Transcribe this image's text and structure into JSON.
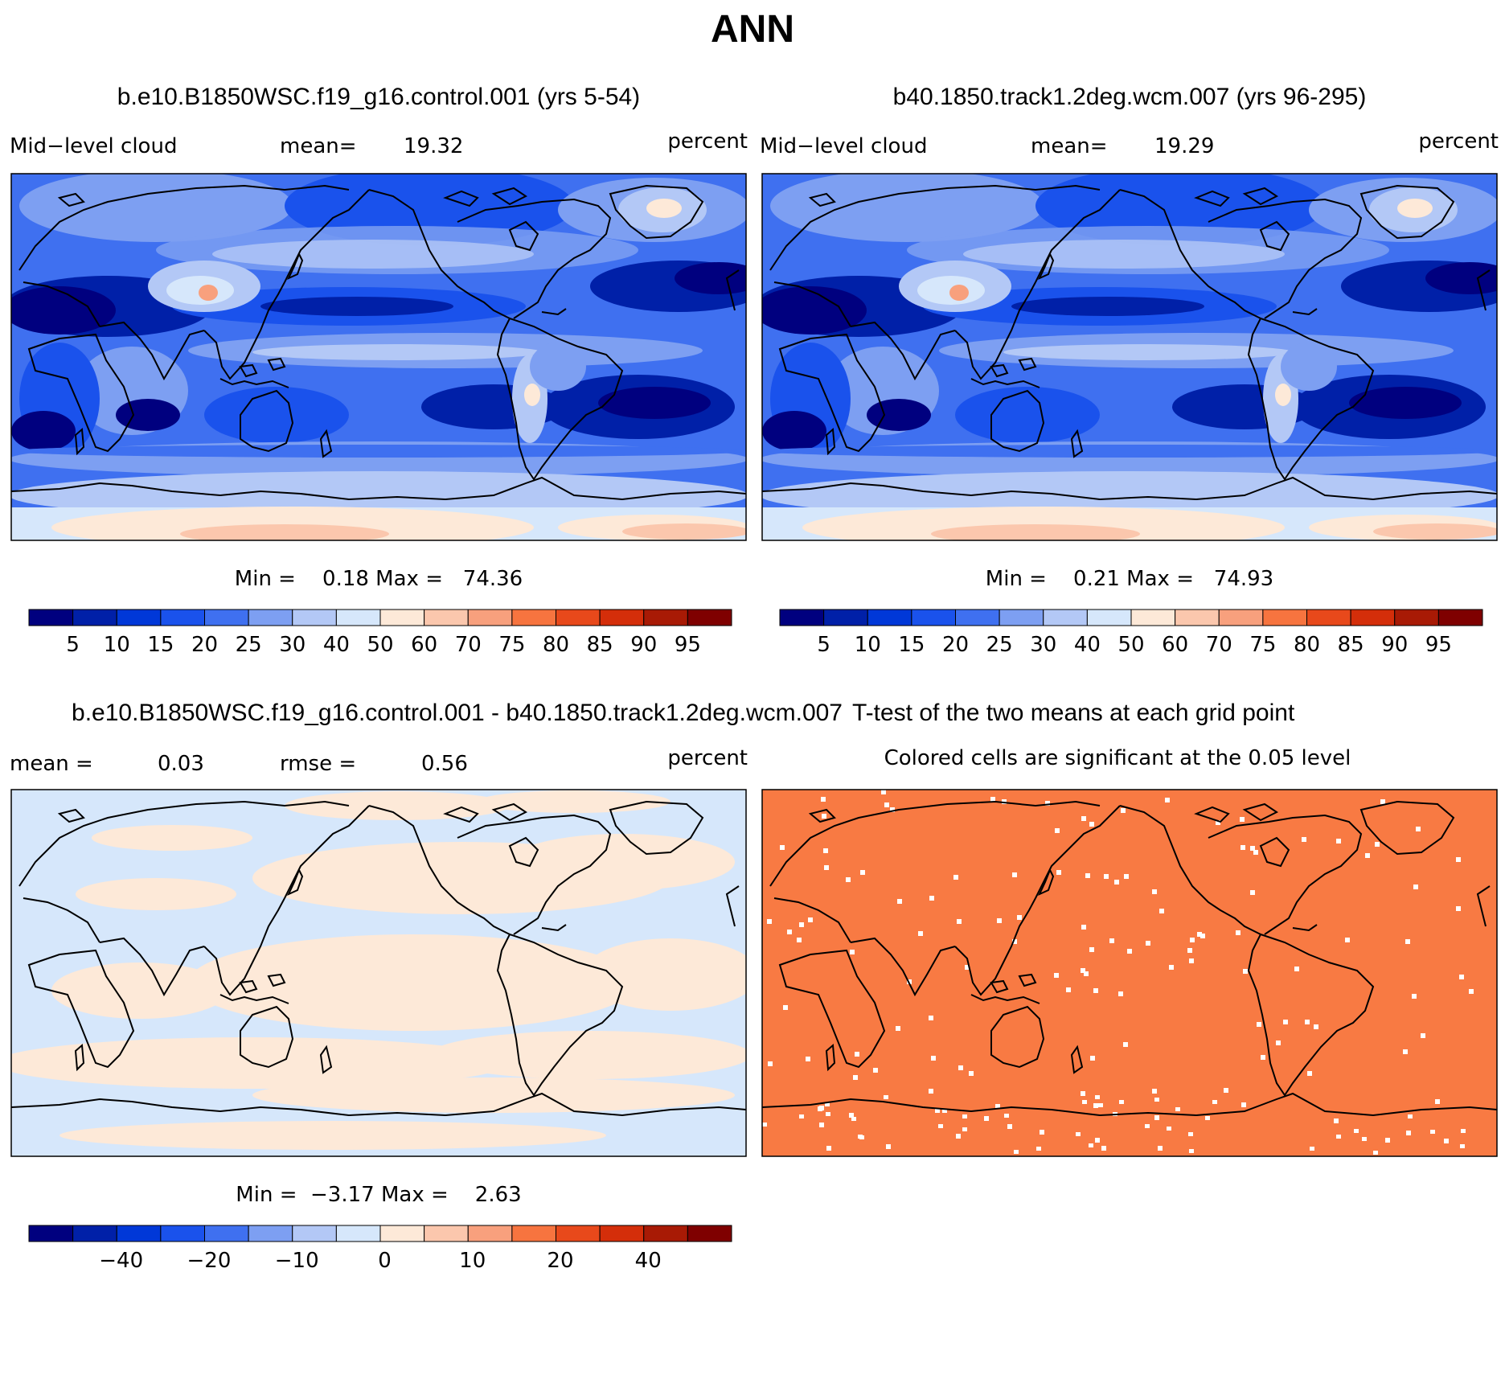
{
  "page_title": "ANN",
  "colors": {
    "scale": [
      "#00007f",
      "#0020a8",
      "#0038d8",
      "#1a52ec",
      "#3f70f0",
      "#7d9ff2",
      "#b3c8f6",
      "#d6e7fb",
      "#fde9d8",
      "#fbc7ad",
      "#f8a07d",
      "#f7743f",
      "#e8491b",
      "#d42e0a",
      "#a81a05",
      "#7f0000"
    ],
    "diff_neg": "#d6e7fb",
    "diff_pos": "#fde9d8",
    "significant": "#f87a43",
    "coast": "#000000"
  },
  "chart_data": [
    {
      "type": "heatmap",
      "id": "panel-control",
      "title": "b.e10.B1850WSC.f19_g16.control.001 (yrs 5-54)",
      "left_label": "Mid−level cloud",
      "stat_label": "mean=",
      "stat_value": "19.32",
      "units": "percent",
      "min_max_text": "Min =    0.18 Max =   74.36",
      "min": 0.18,
      "max": 74.36,
      "mean": 19.32,
      "colorbar_levels": [
        "5",
        "10",
        "15",
        "20",
        "25",
        "30",
        "40",
        "50",
        "60",
        "70",
        "75",
        "80",
        "85",
        "90",
        "95"
      ]
    },
    {
      "type": "heatmap",
      "id": "panel-track1",
      "title": "b40.1850.track1.2deg.wcm.007 (yrs 96-295)",
      "left_label": "Mid−level cloud",
      "stat_label": "mean=",
      "stat_value": "19.29",
      "units": "percent",
      "min_max_text": "Min =    0.21 Max =   74.93",
      "min": 0.21,
      "max": 74.93,
      "mean": 19.29,
      "colorbar_levels": [
        "5",
        "10",
        "15",
        "20",
        "25",
        "30",
        "40",
        "50",
        "60",
        "70",
        "75",
        "80",
        "85",
        "90",
        "95"
      ]
    },
    {
      "type": "heatmap",
      "id": "panel-diff",
      "title": "b.e10.B1850WSC.f19_g16.control.001 - b40.1850.track1.2deg.wcm.007",
      "left_label": "mean =",
      "stat_value": "0.03",
      "rmse_label": "rmse =",
      "rmse_value": "0.56",
      "units": "percent",
      "min_max_text": "Min =  −3.17 Max =    2.63",
      "min": -3.17,
      "max": 2.63,
      "mean": 0.03,
      "rmse": 0.56,
      "colorbar_levels": [
        "−40",
        "−20",
        "−10",
        "0",
        "10",
        "20",
        "40"
      ]
    },
    {
      "type": "heatmap",
      "id": "panel-ttest",
      "title": "T-test of the two means at each grid point",
      "subtitle": "Colored cells are significant at the 0.05 level",
      "significance_level": 0.05
    }
  ]
}
